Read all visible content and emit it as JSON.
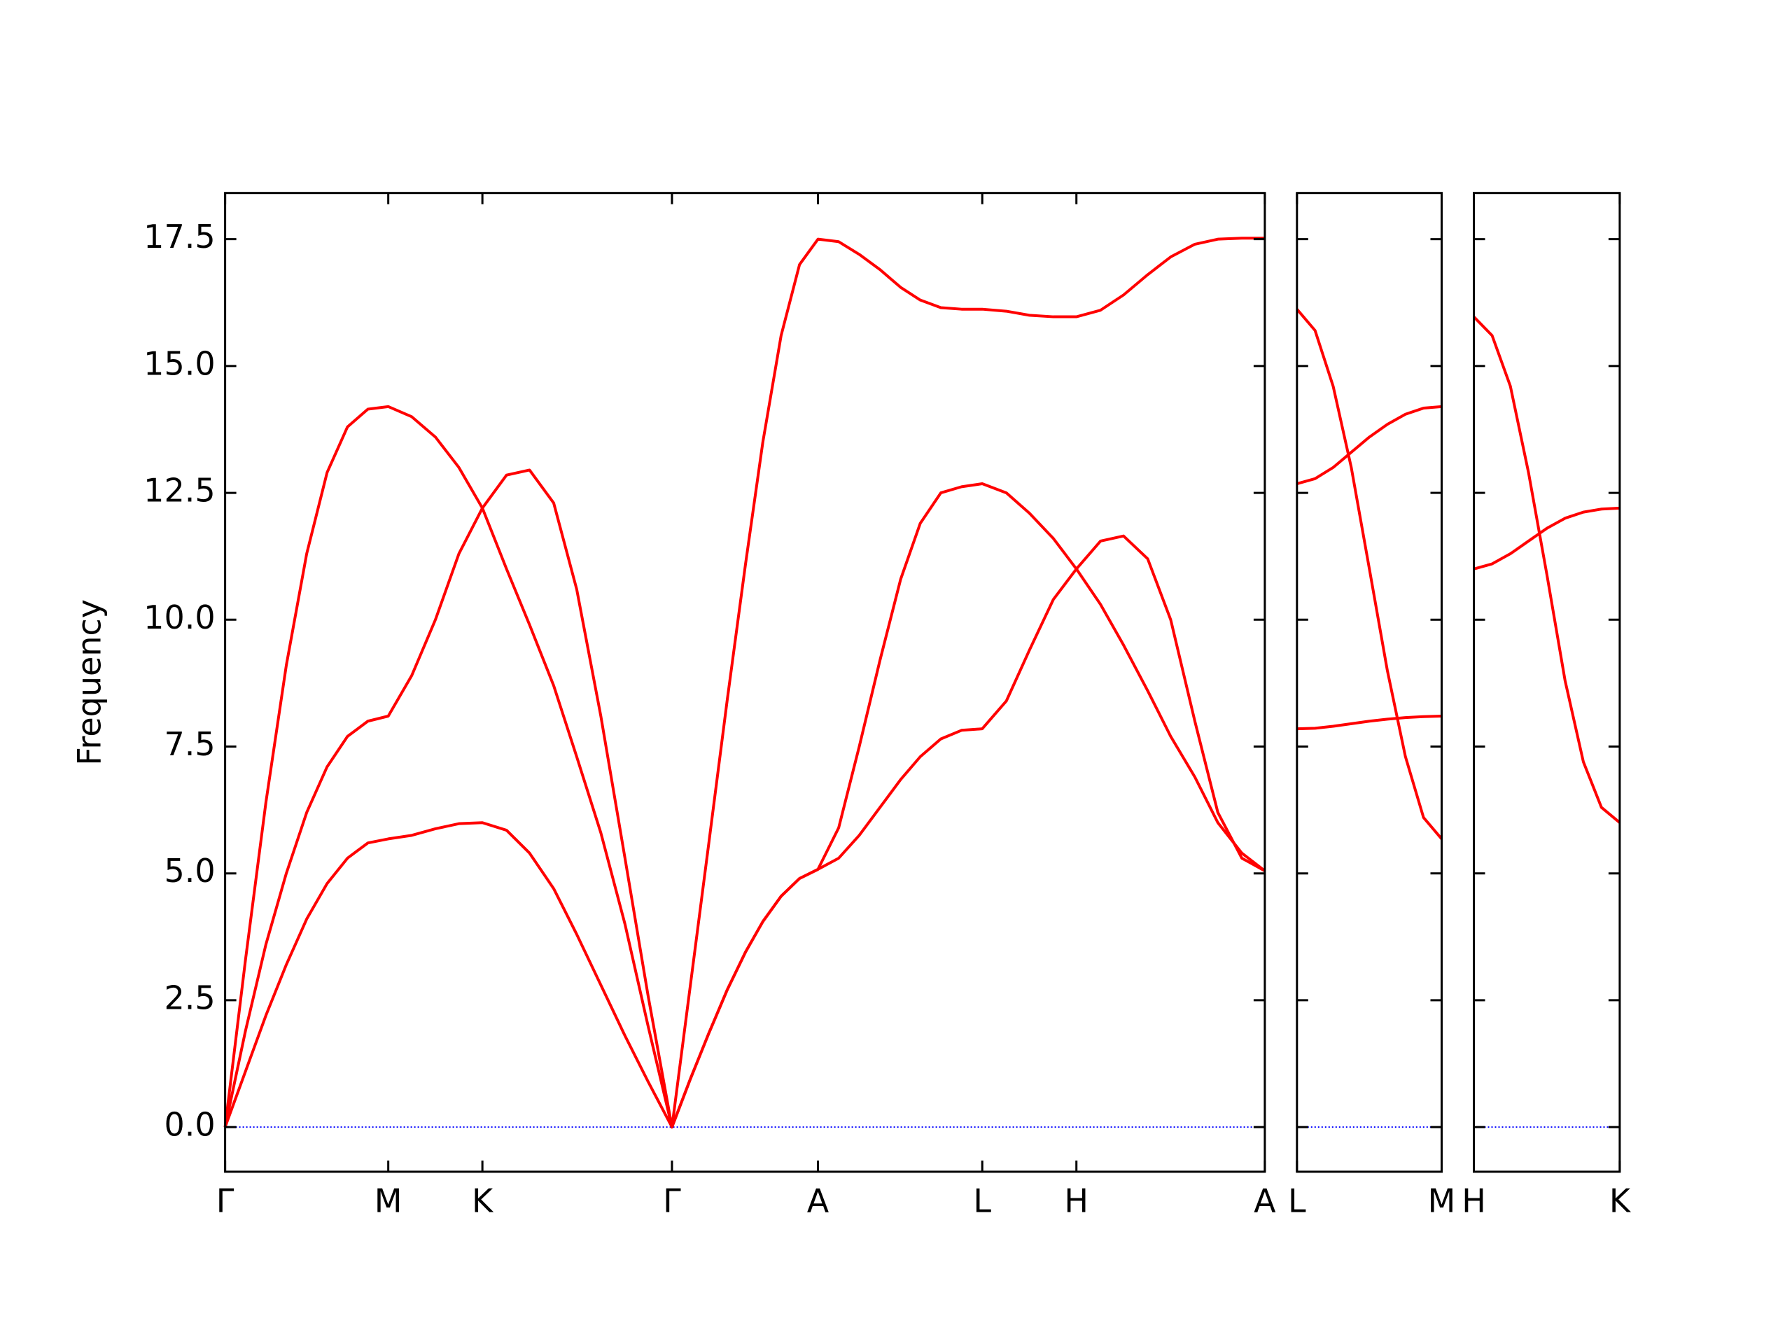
{
  "chart_data": [
    {
      "type": "line",
      "ylabel": "Frequency",
      "yticklabels": true,
      "x": [
        0,
        0.125,
        0.25,
        0.375,
        0.5,
        0.625,
        0.75,
        0.875,
        1.0,
        1.144,
        1.289,
        1.433,
        1.577,
        1.725,
        1.866,
        2.014,
        2.155,
        2.303,
        2.451,
        2.592,
        2.739,
        2.852,
        2.965,
        3.077,
        3.19,
        3.296,
        3.408,
        3.521,
        3.634,
        3.761,
        3.887,
        4.014,
        4.141,
        4.261,
        4.387,
        4.514,
        4.641,
        4.789,
        4.93,
        5.077,
        5.218,
        5.366,
        5.507,
        5.655,
        5.796,
        5.944,
        6.085,
        6.232,
        6.373
      ],
      "series": [
        {
          "color": "#ff0000",
          "values": [
            0,
            1.1,
            2.2,
            3.2,
            4.1,
            4.8,
            5.3,
            5.6,
            5.68,
            5.75,
            5.88,
            5.98,
            6.0,
            5.85,
            5.4,
            4.7,
            3.8,
            2.8,
            1.8,
            0.9,
            0,
            0.95,
            1.85,
            2.7,
            3.45,
            4.05,
            4.55,
            4.9,
            5.08,
            5.3,
            5.75,
            6.3,
            6.85,
            7.3,
            7.65,
            7.82,
            7.85,
            8.4,
            9.4,
            10.4,
            11.0,
            11.55,
            11.65,
            11.2,
            10.0,
            8.0,
            6.2,
            5.3,
            5.05
          ]
        },
        {
          "color": "#ff0000",
          "values": [
            0,
            1.9,
            3.6,
            5.0,
            6.2,
            7.1,
            7.7,
            8.0,
            8.1,
            8.9,
            10.0,
            11.3,
            12.2,
            12.85,
            12.95,
            12.3,
            10.6,
            8.1,
            5.3,
            2.6,
            0,
            0.95,
            1.85,
            2.7,
            3.45,
            4.05,
            4.55,
            4.9,
            5.08,
            5.9,
            7.5,
            9.2,
            10.8,
            11.9,
            12.5,
            12.62,
            12.68,
            12.5,
            12.1,
            11.6,
            11.0,
            10.3,
            9.5,
            8.6,
            7.7,
            6.9,
            6.0,
            5.4,
            5.05
          ]
        },
        {
          "color": "#ff0000",
          "values": [
            0,
            3.3,
            6.4,
            9.1,
            11.3,
            12.9,
            13.8,
            14.15,
            14.2,
            14.0,
            13.6,
            13.0,
            12.2,
            11.0,
            9.9,
            8.7,
            7.3,
            5.8,
            4.0,
            2.0,
            0,
            2.8,
            5.6,
            8.4,
            11.1,
            13.5,
            15.6,
            17.0,
            17.5,
            17.45,
            17.2,
            16.9,
            16.55,
            16.3,
            16.15,
            16.12,
            16.12,
            16.08,
            16.0,
            15.97,
            15.97,
            16.1,
            16.4,
            16.8,
            17.15,
            17.4,
            17.5,
            17.52,
            17.52
          ]
        }
      ],
      "xlim": [
        0,
        6.373
      ],
      "ylim": [
        -0.88,
        18.41
      ],
      "xticks": [
        {
          "value": 0,
          "label": "Γ"
        },
        {
          "value": 1.0,
          "label": "M"
        },
        {
          "value": 1.577,
          "label": "K"
        },
        {
          "value": 2.739,
          "label": "Γ"
        },
        {
          "value": 3.634,
          "label": "A"
        },
        {
          "value": 4.641,
          "label": "L"
        },
        {
          "value": 5.218,
          "label": "H"
        },
        {
          "value": 6.373,
          "label": "A"
        }
      ],
      "yticks": [
        {
          "value": 0,
          "label": "0.0"
        },
        2.5,
        {
          "value": 5,
          "label": "5.0"
        },
        7.5,
        {
          "value": 10,
          "label": "10.0"
        },
        12.5,
        {
          "value": 15,
          "label": "15.0"
        },
        17.5
      ],
      "zero_line": 0,
      "zero_line_color": "#0000ff"
    },
    {
      "type": "line",
      "yticklabels": false,
      "x": [
        0,
        0.111,
        0.222,
        0.333,
        0.444,
        0.554,
        0.665,
        0.776,
        0.887
      ],
      "series": [
        {
          "color": "#ff0000",
          "values": [
            16.12,
            15.7,
            14.6,
            13.0,
            11.0,
            9.0,
            7.3,
            6.1,
            5.68
          ]
        },
        {
          "color": "#ff0000",
          "values": [
            12.68,
            12.78,
            13.0,
            13.3,
            13.6,
            13.85,
            14.05,
            14.17,
            14.2
          ]
        },
        {
          "color": "#ff0000",
          "values": [
            7.85,
            7.86,
            7.9,
            7.95,
            8.0,
            8.04,
            8.07,
            8.09,
            8.1
          ]
        }
      ],
      "xlim": [
        0,
        0.887
      ],
      "ylim": [
        -0.88,
        18.41
      ],
      "xticks": [
        {
          "value": 0,
          "label": "L"
        },
        {
          "value": 0.887,
          "label": "M"
        }
      ],
      "yticks": [
        0,
        2.5,
        5,
        7.5,
        10,
        12.5,
        15,
        17.5
      ],
      "zero_line": 0,
      "zero_line_color": "#0000ff"
    },
    {
      "type": "line",
      "yticklabels": false,
      "x": [
        0,
        0.112,
        0.224,
        0.335,
        0.447,
        0.559,
        0.671,
        0.782,
        0.894
      ],
      "series": [
        {
          "color": "#ff0000",
          "values": [
            15.97,
            15.6,
            14.6,
            12.9,
            10.9,
            8.8,
            7.2,
            6.3,
            6.0
          ]
        },
        {
          "color": "#ff0000",
          "values": [
            11.0,
            11.1,
            11.3,
            11.55,
            11.8,
            12.0,
            12.12,
            12.18,
            12.2
          ]
        }
      ],
      "xlim": [
        0,
        0.894
      ],
      "ylim": [
        -0.88,
        18.41
      ],
      "xticks": [
        {
          "value": 0,
          "label": "H"
        },
        {
          "value": 0.894,
          "label": "K"
        }
      ],
      "yticks": [
        0,
        2.5,
        5,
        7.5,
        10,
        12.5,
        15,
        17.5
      ],
      "zero_line": 0,
      "zero_line_color": "#0000ff"
    }
  ]
}
